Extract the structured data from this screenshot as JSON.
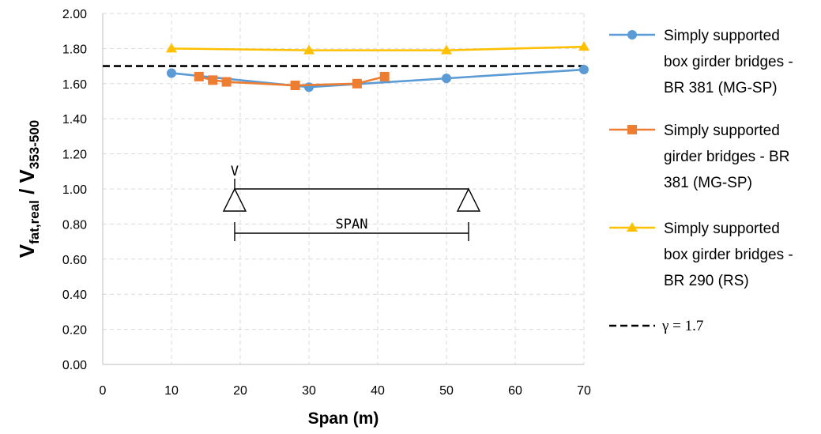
{
  "chart_data": {
    "type": "line",
    "xlabel": "Span (m)",
    "ylabel": {
      "main1": "V",
      "sub1": "fat,real",
      "sep": " / V",
      "sub2": "353-500"
    },
    "xlim": [
      0,
      70
    ],
    "ylim": [
      0,
      2
    ],
    "x_ticks": [
      0,
      10,
      20,
      30,
      40,
      50,
      60,
      70
    ],
    "y_ticks": [
      0,
      0.2,
      0.4,
      0.6,
      0.8,
      1.0,
      1.2,
      1.4,
      1.6,
      1.8,
      2.0
    ],
    "y_tick_labels": [
      "0.00",
      "0.20",
      "0.40",
      "0.60",
      "0.80",
      "1.00",
      "1.20",
      "1.40",
      "1.60",
      "1.80",
      "2.00"
    ],
    "grid": true,
    "legend_position": "right",
    "series": [
      {
        "name": "Simply supported box girder bridges - BR 381 (MG-SP)",
        "legend_lines": [
          "Simply supported",
          "box girder bridges -",
          "BR 381 (MG-SP)"
        ],
        "color": "#5B9BD5",
        "marker": "circle",
        "x": [
          10,
          30,
          50,
          70
        ],
        "y": [
          1.66,
          1.58,
          1.63,
          1.68
        ]
      },
      {
        "name": "Simply supported girder bridges - BR 381 (MG-SP)",
        "legend_lines": [
          "Simply supported",
          "girder bridges - BR",
          "381 (MG-SP)"
        ],
        "color": "#ED7D31",
        "marker": "square",
        "x": [
          14,
          16,
          18,
          28,
          37,
          41
        ],
        "y": [
          1.64,
          1.62,
          1.61,
          1.59,
          1.6,
          1.64
        ]
      },
      {
        "name": "Simply supported box girder bridges - BR 290 (RS)",
        "legend_lines": [
          "Simply supported",
          "box girder bridges -",
          "BR 290 (RS)"
        ],
        "color": "#FFC000",
        "marker": "triangle",
        "x": [
          10,
          30,
          50,
          70
        ],
        "y": [
          1.8,
          1.79,
          1.79,
          1.81
        ]
      }
    ],
    "reference_line": {
      "name": "γ = 1.7",
      "value": 1.7,
      "color": "#000000",
      "style": "dashed"
    },
    "inset_sketch": {
      "load_label": "V",
      "span_label": "SPAN"
    }
  }
}
